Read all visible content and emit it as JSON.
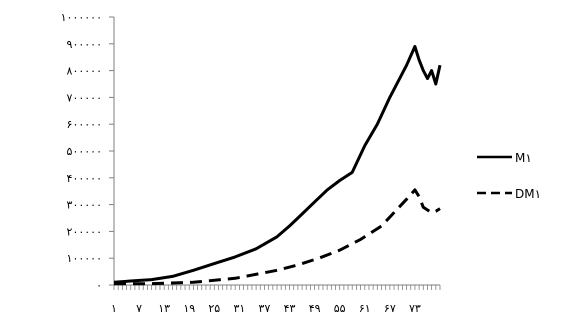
{
  "chart_data": {
    "type": "line",
    "title": "",
    "xlabel": "",
    "ylabel": "",
    "ylim": [
      0,
      1000000
    ],
    "xlim": [
      1,
      79
    ],
    "y_ticks": [
      {
        "value": 0,
        "label": "۰"
      },
      {
        "value": 100000,
        "label": "۱۰۰۰۰۰"
      },
      {
        "value": 200000,
        "label": "۲۰۰۰۰۰"
      },
      {
        "value": 300000,
        "label": "۳۰۰۰۰۰"
      },
      {
        "value": 400000,
        "label": "۴۰۰۰۰۰"
      },
      {
        "value": 500000,
        "label": "۵۰۰۰۰۰"
      },
      {
        "value": 600000,
        "label": "۶۰۰۰۰۰"
      },
      {
        "value": 700000,
        "label": "۷۰۰۰۰۰"
      },
      {
        "value": 800000,
        "label": "۸۰۰۰۰۰"
      },
      {
        "value": 900000,
        "label": "۹۰۰۰۰۰"
      },
      {
        "value": 1000000,
        "label": "۱۰۰۰۰۰۰"
      }
    ],
    "x_tick_labels": [
      {
        "x": 1,
        "label": "۱"
      },
      {
        "x": 7,
        "label": "۷"
      },
      {
        "x": 13,
        "label": "۱۳"
      },
      {
        "x": 19,
        "label": "۱۹"
      },
      {
        "x": 25,
        "label": "۲۵"
      },
      {
        "x": 31,
        "label": "۳۱"
      },
      {
        "x": 37,
        "label": "۳۷"
      },
      {
        "x": 43,
        "label": "۴۳"
      },
      {
        "x": 49,
        "label": "۴۹"
      },
      {
        "x": 55,
        "label": "۵۵"
      },
      {
        "x": 61,
        "label": "۶۱"
      },
      {
        "x": 67,
        "label": "۶۷"
      },
      {
        "x": 73,
        "label": "۷۳"
      }
    ],
    "grid": false,
    "legend_position": "right",
    "series": [
      {
        "name": "M۱",
        "style": "solid",
        "color": "#000000",
        "x": [
          1,
          5,
          10,
          15,
          20,
          25,
          30,
          35,
          40,
          43,
          46,
          49,
          52,
          55,
          58,
          61,
          64,
          67,
          69,
          71,
          73,
          74,
          75,
          76,
          77,
          78,
          79
        ],
        "y": [
          10000,
          15000,
          20000,
          32000,
          55000,
          80000,
          105000,
          135000,
          180000,
          220000,
          265000,
          310000,
          355000,
          390000,
          420000,
          520000,
          600000,
          700000,
          760000,
          820000,
          890000,
          840000,
          800000,
          770000,
          800000,
          750000,
          820000
        ]
      },
      {
        "name": "DM۱",
        "style": "dashed",
        "color": "#000000",
        "x": [
          1,
          10,
          20,
          30,
          40,
          45,
          50,
          55,
          60,
          65,
          68,
          71,
          73,
          74,
          75,
          76,
          77,
          78,
          79
        ],
        "y": [
          5000,
          5000,
          10000,
          25000,
          55000,
          75000,
          100000,
          130000,
          170000,
          220000,
          270000,
          320000,
          355000,
          330000,
          290000,
          280000,
          270000,
          275000,
          285000
        ]
      }
    ]
  }
}
